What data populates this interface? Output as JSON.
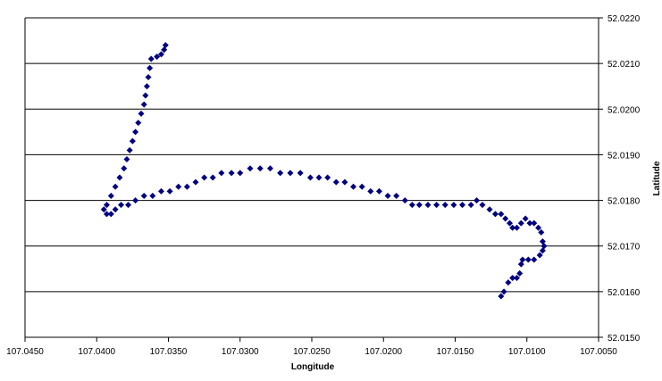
{
  "chart_data": {
    "type": "scatter",
    "xlabel": "Longitude",
    "ylabel": "Latitude",
    "xlim": [
      107.045,
      107.005
    ],
    "ylim": [
      52.015,
      52.022
    ],
    "x_reversed": true,
    "y_axis_side": "right",
    "grid": "horizontal",
    "legend": "none",
    "x_ticks": [
      "107.0450",
      "107.0400",
      "107.0350",
      "107.0300",
      "107.0250",
      "107.0200",
      "107.0150",
      "107.0100",
      "107.0050"
    ],
    "y_ticks": [
      "52.0150",
      "52.0160",
      "52.0170",
      "52.0180",
      "52.0190",
      "52.0200",
      "52.0210",
      "52.0220"
    ],
    "marker_color": "#000080",
    "marker": "diamond",
    "series": [
      {
        "points": [
          [
            107.0352,
            52.0214
          ],
          [
            107.0353,
            52.0213
          ],
          [
            107.0355,
            52.0212
          ],
          [
            107.0358,
            52.02115
          ],
          [
            107.0362,
            52.0211
          ],
          [
            107.0363,
            52.0209
          ],
          [
            107.0364,
            52.0207
          ],
          [
            107.0365,
            52.0205
          ],
          [
            107.0366,
            52.0203
          ],
          [
            107.0367,
            52.0201
          ],
          [
            107.0369,
            52.0199
          ],
          [
            107.0371,
            52.0197
          ],
          [
            107.0373,
            52.0195
          ],
          [
            107.0375,
            52.0193
          ],
          [
            107.0377,
            52.0191
          ],
          [
            107.0379,
            52.0189
          ],
          [
            107.0381,
            52.0187
          ],
          [
            107.0384,
            52.0185
          ],
          [
            107.0387,
            52.0183
          ],
          [
            107.039,
            52.0181
          ],
          [
            107.0393,
            52.0179
          ],
          [
            107.0395,
            52.0178
          ],
          [
            107.0393,
            52.0177
          ],
          [
            107.039,
            52.0177
          ],
          [
            107.0387,
            52.0178
          ],
          [
            107.0383,
            52.0179
          ],
          [
            107.0378,
            52.0179
          ],
          [
            107.0373,
            52.018
          ],
          [
            107.0367,
            52.0181
          ],
          [
            107.0361,
            52.0181
          ],
          [
            107.0355,
            52.0182
          ],
          [
            107.0349,
            52.0182
          ],
          [
            107.0343,
            52.0183
          ],
          [
            107.0337,
            52.0183
          ],
          [
            107.0331,
            52.0184
          ],
          [
            107.0325,
            52.0185
          ],
          [
            107.0319,
            52.0185
          ],
          [
            107.0313,
            52.0186
          ],
          [
            107.0306,
            52.0186
          ],
          [
            107.03,
            52.0186
          ],
          [
            107.0293,
            52.0187
          ],
          [
            107.0286,
            52.0187
          ],
          [
            107.0279,
            52.0187
          ],
          [
            107.0272,
            52.0186
          ],
          [
            107.0265,
            52.0186
          ],
          [
            107.0258,
            52.0186
          ],
          [
            107.0251,
            52.0185
          ],
          [
            107.0245,
            52.0185
          ],
          [
            107.0239,
            52.0185
          ],
          [
            107.0233,
            52.0184
          ],
          [
            107.0227,
            52.0184
          ],
          [
            107.0221,
            52.0183
          ],
          [
            107.0215,
            52.0183
          ],
          [
            107.0209,
            52.0182
          ],
          [
            107.0203,
            52.0182
          ],
          [
            107.0197,
            52.0181
          ],
          [
            107.0191,
            52.0181
          ],
          [
            107.0185,
            52.018
          ],
          [
            107.018,
            52.0179
          ],
          [
            107.0175,
            52.0179
          ],
          [
            107.0169,
            52.0179
          ],
          [
            107.0163,
            52.0179
          ],
          [
            107.0157,
            52.0179
          ],
          [
            107.0151,
            52.0179
          ],
          [
            107.0145,
            52.0179
          ],
          [
            107.0139,
            52.0179
          ],
          [
            107.0135,
            52.018
          ],
          [
            107.0131,
            52.0179
          ],
          [
            107.0126,
            52.0178
          ],
          [
            107.0122,
            52.0177
          ],
          [
            107.0118,
            52.0177
          ],
          [
            107.0115,
            52.0176
          ],
          [
            107.0112,
            52.0175
          ],
          [
            107.011,
            52.0174
          ],
          [
            107.0107,
            52.0174
          ],
          [
            107.0104,
            52.0175
          ],
          [
            107.0101,
            52.0176
          ],
          [
            107.0098,
            52.0175
          ],
          [
            107.0095,
            52.0175
          ],
          [
            107.0092,
            52.0174
          ],
          [
            107.009,
            52.0173
          ],
          [
            107.0089,
            52.0171
          ],
          [
            107.0088,
            52.017
          ],
          [
            107.0089,
            52.0169
          ],
          [
            107.0091,
            52.0168
          ],
          [
            107.0095,
            52.0167
          ],
          [
            107.0099,
            52.0167
          ],
          [
            107.0103,
            52.0167
          ],
          [
            107.0104,
            52.0166
          ],
          [
            107.0105,
            52.0164
          ],
          [
            107.0107,
            52.0163
          ],
          [
            107.011,
            52.0163
          ],
          [
            107.0113,
            52.0162
          ],
          [
            107.0116,
            52.016
          ],
          [
            107.0118,
            52.0159
          ]
        ]
      }
    ]
  }
}
